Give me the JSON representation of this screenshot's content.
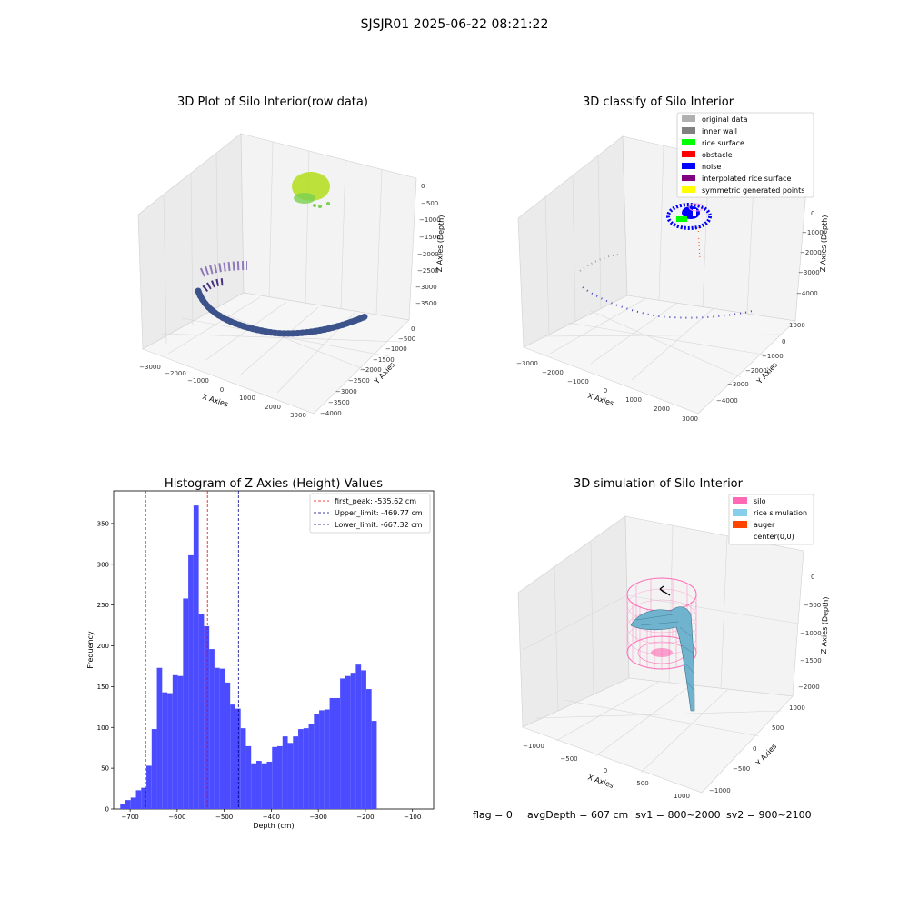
{
  "figure": {
    "suptitle": "SJSJR01 2025-06-22 08:21:22",
    "status_line": {
      "flag": "flag = 0",
      "avg_depth": "avgDepth = 607 cm",
      "sv1": "sv1 = 800~2000",
      "sv2": "sv2 = 900~2100"
    }
  },
  "chart_data": [
    {
      "type": "scatter3d",
      "title": "3D Plot of Silo Interior(row data)",
      "xlabel": "X Axies",
      "ylabel": "Y Axies",
      "zlabel": "Z Axies (Depth)",
      "xticks": [
        "−3000",
        "−2000",
        "−1000",
        "0",
        "1000",
        "2000",
        "3000"
      ],
      "yticks": [
        "0",
        "−500",
        "−1000",
        "−1500",
        "−2000",
        "−2500",
        "−3000",
        "−3500",
        "−4000"
      ],
      "zticks": [
        "0",
        "−500",
        "−1000",
        "−1500",
        "−2000",
        "−2500",
        "−3000",
        "−3500"
      ],
      "colors": {
        "surface": "#b5df26",
        "surface_dark": "#7ad151",
        "wall": "#3b528b",
        "wall_light": "#46327e",
        "upper": "#8e7ab8"
      },
      "grid": true
    },
    {
      "type": "scatter3d",
      "title": "3D classify of Silo Interior",
      "xlabel": "X Axies",
      "ylabel": "Y Axies",
      "zlabel": "Z Axies (Depth)",
      "xticks": [
        "−3000",
        "−2000",
        "−1000",
        "0",
        "1000",
        "2000",
        "3000"
      ],
      "yticks": [
        "1000",
        "0",
        "−1000",
        "−2000",
        "−3000",
        "−4000"
      ],
      "zticks": [
        "0",
        "−1000",
        "−2000",
        "−3000",
        "−4000"
      ],
      "legend": [
        {
          "label": "original data",
          "color": "#b0b0b0"
        },
        {
          "label": "inner wall",
          "color": "#808080"
        },
        {
          "label": "rice surface",
          "color": "#00ff00"
        },
        {
          "label": "obstacle",
          "color": "#ff0000"
        },
        {
          "label": "noise",
          "color": "#0000ff"
        },
        {
          "label": "interpolated rice surface",
          "color": "#800080"
        },
        {
          "label": "symmetric generated points",
          "color": "#ffff00"
        }
      ],
      "legend_position": "top-right",
      "grid": true
    },
    {
      "type": "bar",
      "title": "Histogram of Z-Axies (Height) Values",
      "xlabel": "Depth (cm)",
      "ylabel": "Frequency",
      "xlim": [
        -735,
        -55
      ],
      "ylim": [
        0,
        390
      ],
      "xticks": [
        -700,
        -600,
        -500,
        -400,
        -300,
        -200,
        -100
      ],
      "yticks": [
        0,
        50,
        100,
        150,
        200,
        250,
        300,
        350
      ],
      "bin_start": -721,
      "bin_width": 11.125,
      "values": [
        6,
        11,
        14,
        23,
        26,
        53,
        98,
        173,
        143,
        142,
        164,
        163,
        258,
        311,
        372,
        239,
        224,
        196,
        173,
        172,
        155,
        128,
        123,
        99,
        77,
        56,
        59,
        56,
        58,
        76,
        77,
        89,
        81,
        89,
        98,
        99,
        104,
        117,
        121,
        122,
        136,
        136,
        160,
        163,
        167,
        177,
        170,
        147,
        108
      ],
      "bar_color": "#4b4bff",
      "vlines": [
        {
          "label": "first_peak: -535.62 cm",
          "x": -535.62,
          "color": "#ff0000"
        },
        {
          "label": "Upper_limit: -469.77 cm",
          "x": -469.77,
          "color": "#00008b"
        },
        {
          "label": "Lower_limit: -667.32 cm",
          "x": -667.32,
          "color": "#00008b"
        }
      ],
      "legend_position": "top-right"
    },
    {
      "type": "surface3d",
      "title": "3D simulation of Silo Interior",
      "xlabel": "X Axies",
      "ylabel": "Y Axies",
      "zlabel": "Z Axies (Depth)",
      "xticks": [
        "−1000",
        "−500",
        "0",
        "500",
        "1000"
      ],
      "yticks": [
        "1000",
        "500",
        "0",
        "−500",
        "−1000"
      ],
      "zticks": [
        "0",
        "−500",
        "−1000",
        "−1500",
        "−2000"
      ],
      "legend": [
        {
          "label": "silo",
          "color": "#ff69b4"
        },
        {
          "label": "rice simulation",
          "color": "#87ceeb"
        },
        {
          "label": "auger",
          "color": "#ff4500"
        },
        {
          "label": "center(0,0)",
          "color": ""
        }
      ],
      "legend_position": "top-right",
      "grid": true
    }
  ]
}
